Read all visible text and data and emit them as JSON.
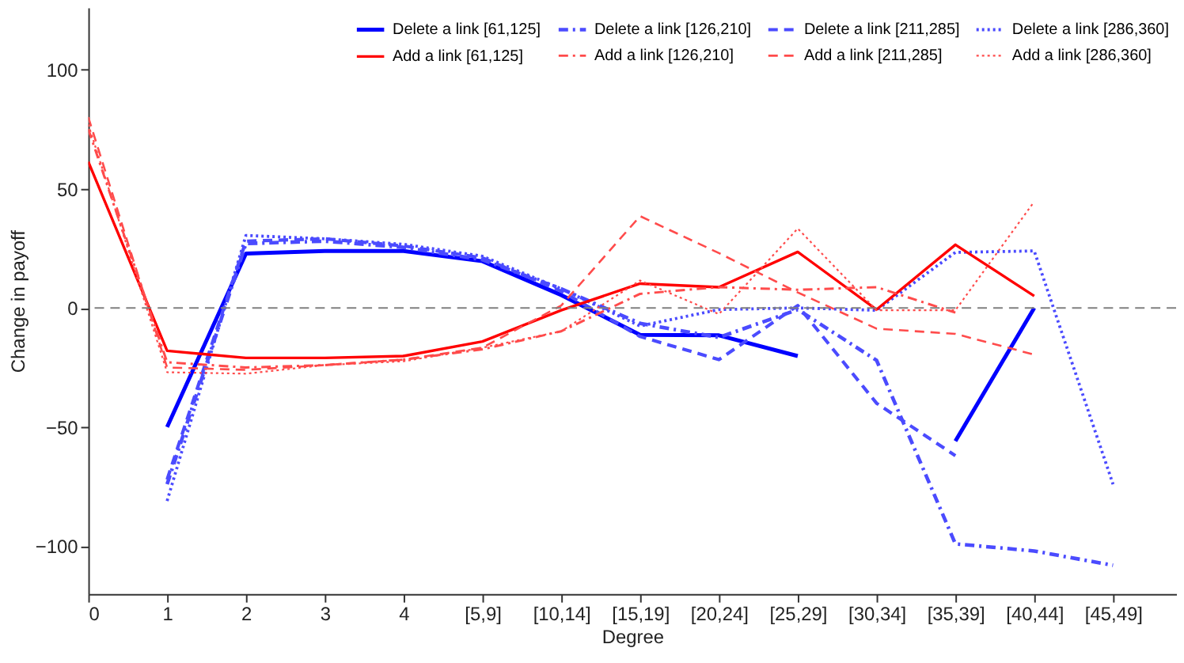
{
  "chart_data": {
    "type": "line",
    "xlabel": "Degree",
    "ylabel": "Change in payoff",
    "categories": [
      "0",
      "1",
      "2",
      "3",
      "4",
      "[5,9]",
      "[10,14]",
      "[15,19]",
      "[20,24]",
      "[25,29]",
      "[30,34]",
      "[35,39]",
      "[40,44]",
      "[45,49]"
    ],
    "ylim": [
      -120,
      126
    ],
    "yticks": [
      -100,
      -50,
      0,
      50,
      100
    ],
    "grid": false,
    "legend": "top right",
    "ref_lines": [
      {
        "axis": "y",
        "value": 0,
        "color": "#808080",
        "line_style": "dashed"
      }
    ],
    "series": [
      {
        "name": "Delete a link [61,125]",
        "color": "#0000ff",
        "line_style": "solid",
        "values": [
          null,
          -50,
          22.8,
          23.9,
          23.9,
          19.6,
          5.4,
          -11.3,
          -11.5,
          -20.2,
          null,
          -55.9,
          0,
          null
        ]
      },
      {
        "name": "Delete a link [126,210]",
        "color": "#4b4bff",
        "line_style": "dashdot",
        "values": [
          null,
          -74,
          27,
          28,
          25.4,
          20.2,
          8,
          -6.5,
          -12.4,
          -0.7,
          -22,
          -99,
          -102,
          -108
        ]
      },
      {
        "name": "Delete a link [211,285]",
        "color": "#4b4bff",
        "line_style": "dashed",
        "values": [
          null,
          -72,
          28,
          29,
          26,
          21,
          7,
          -12,
          -21.7,
          1,
          -40,
          -62,
          null,
          null
        ]
      },
      {
        "name": "Delete a link [286,360]",
        "color": "#4b4bff",
        "line_style": "dotted",
        "values": [
          null,
          -81,
          30.4,
          29,
          26.7,
          21.7,
          8,
          -7.6,
          -0.7,
          0,
          -1,
          23.3,
          23.9,
          -74
        ]
      },
      {
        "name": "Add a link [61,125]",
        "color": "#ff0000",
        "line_style": "solid",
        "values": [
          61.3,
          -18,
          -21,
          -21,
          -20.2,
          -14.1,
          -1,
          10.2,
          8.7,
          23.5,
          -0.7,
          26.5,
          5,
          null
        ]
      },
      {
        "name": "Add a link [126,210]",
        "color": "#ff4b4b",
        "line_style": "dashdot",
        "values": [
          75,
          -22.8,
          -25,
          -24,
          -21.7,
          -17.4,
          -9.8,
          5.9,
          8.7,
          7.6,
          8.7,
          -2,
          null,
          null
        ]
      },
      {
        "name": "Add a link [211,285]",
        "color": "#ff4b4b",
        "line_style": "dashed",
        "values": [
          80,
          -25,
          -26,
          -24,
          -21.7,
          -16.7,
          1,
          38.5,
          23,
          6.5,
          -8.7,
          -10.9,
          -19.6,
          null
        ]
      },
      {
        "name": "Add a link [286,360]",
        "color": "#ff4b4b",
        "line_style": "dotted",
        "values": [
          77,
          -27,
          -27.6,
          -24,
          -22.4,
          -16.7,
          -9.8,
          11.5,
          -2.6,
          33.3,
          -1,
          -1,
          44.6,
          null
        ]
      }
    ]
  }
}
